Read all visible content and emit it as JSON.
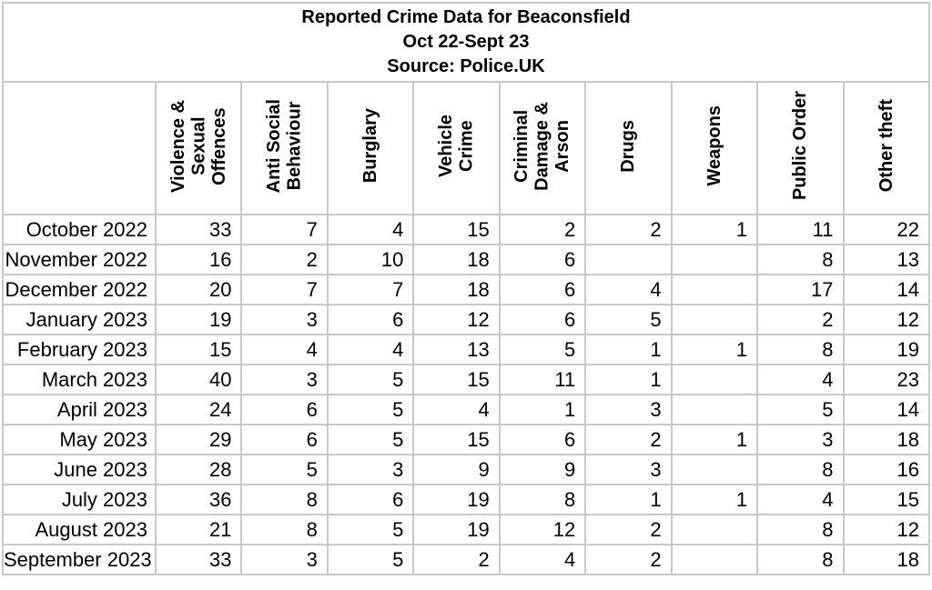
{
  "title": {
    "line1": "Reported Crime Data for Beaconsfield",
    "line2": "Oct 22-Sept 23",
    "line3": "Source: Police.UK"
  },
  "table": {
    "columns": [
      "Violence &\nSexual\nOffences",
      "Anti Social\nBehaviour",
      "Burglary",
      "Vehicle\nCrime",
      "Criminal\nDamage &\nArson",
      "Drugs",
      "Weapons",
      "Public Order",
      "Other theft"
    ],
    "rows": [
      {
        "month": "October 2022",
        "values": [
          33,
          7,
          4,
          15,
          2,
          2,
          1,
          11,
          22
        ]
      },
      {
        "month": "November 2022",
        "values": [
          16,
          2,
          10,
          18,
          6,
          null,
          null,
          8,
          13
        ]
      },
      {
        "month": "December 2022",
        "values": [
          20,
          7,
          7,
          18,
          6,
          4,
          null,
          17,
          14
        ]
      },
      {
        "month": "January 2023",
        "values": [
          19,
          3,
          6,
          12,
          6,
          5,
          null,
          2,
          12
        ]
      },
      {
        "month": "February 2023",
        "values": [
          15,
          4,
          4,
          13,
          5,
          1,
          1,
          8,
          19
        ]
      },
      {
        "month": "March 2023",
        "values": [
          40,
          3,
          5,
          15,
          11,
          1,
          null,
          4,
          23
        ]
      },
      {
        "month": "April 2023",
        "values": [
          24,
          6,
          5,
          4,
          1,
          3,
          null,
          5,
          14
        ]
      },
      {
        "month": "May 2023",
        "values": [
          29,
          6,
          5,
          15,
          6,
          2,
          1,
          3,
          18
        ]
      },
      {
        "month": "June 2023",
        "values": [
          28,
          5,
          3,
          9,
          9,
          3,
          null,
          8,
          16
        ]
      },
      {
        "month": "July 2023",
        "values": [
          36,
          8,
          6,
          19,
          8,
          1,
          1,
          4,
          15
        ]
      },
      {
        "month": "August 2023",
        "values": [
          21,
          8,
          5,
          19,
          12,
          2,
          null,
          8,
          12
        ]
      },
      {
        "month": "September 2023",
        "values": [
          33,
          3,
          5,
          2,
          4,
          2,
          null,
          8,
          18
        ]
      }
    ]
  },
  "colors": {
    "grid_line": "#c8c8c8",
    "cell_background": "#ffffff",
    "text": "#000000"
  },
  "chart_data": {
    "type": "table",
    "title": "Reported Crime Data for Beaconsfield",
    "subtitle": "Oct 22-Sept 23",
    "source": "Source: Police.UK",
    "categories": [
      "October 2022",
      "November 2022",
      "December 2022",
      "January 2023",
      "February 2023",
      "March 2023",
      "April 2023",
      "May 2023",
      "June 2023",
      "July 2023",
      "August 2023",
      "September 2023"
    ],
    "series": [
      {
        "name": "Violence & Sexual Offences",
        "values": [
          33,
          16,
          20,
          19,
          15,
          40,
          24,
          29,
          28,
          36,
          21,
          33
        ]
      },
      {
        "name": "Anti Social Behaviour",
        "values": [
          7,
          2,
          7,
          3,
          4,
          3,
          6,
          6,
          5,
          8,
          8,
          3
        ]
      },
      {
        "name": "Burglary",
        "values": [
          4,
          10,
          7,
          6,
          4,
          5,
          5,
          5,
          3,
          6,
          5,
          5
        ]
      },
      {
        "name": "Vehicle Crime",
        "values": [
          15,
          18,
          18,
          12,
          13,
          15,
          4,
          15,
          9,
          19,
          19,
          2
        ]
      },
      {
        "name": "Criminal Damage & Arson",
        "values": [
          2,
          6,
          6,
          6,
          5,
          11,
          1,
          6,
          9,
          8,
          12,
          4
        ]
      },
      {
        "name": "Drugs",
        "values": [
          2,
          null,
          4,
          5,
          1,
          1,
          3,
          2,
          3,
          1,
          2,
          2
        ]
      },
      {
        "name": "Weapons",
        "values": [
          1,
          null,
          null,
          null,
          1,
          null,
          null,
          1,
          null,
          1,
          null,
          null
        ]
      },
      {
        "name": "Public Order",
        "values": [
          11,
          8,
          17,
          2,
          8,
          4,
          5,
          3,
          8,
          4,
          8,
          8
        ]
      },
      {
        "name": "Other theft",
        "values": [
          22,
          13,
          14,
          12,
          19,
          23,
          14,
          18,
          16,
          15,
          12,
          18
        ]
      }
    ]
  }
}
